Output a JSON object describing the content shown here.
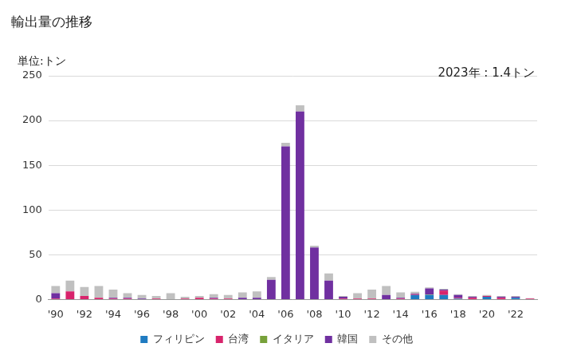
{
  "chart_data": {
    "type": "bar",
    "title": "輸出量の推移",
    "y_label": "単位:トン",
    "annotations": [
      "2023年 : 1.4トン"
    ],
    "categories": [
      "'90",
      null,
      "'92",
      null,
      "'94",
      null,
      "'96",
      null,
      "'98",
      null,
      "'00",
      null,
      "'02",
      null,
      "'04",
      null,
      "'06",
      null,
      "'08",
      null,
      "'10",
      null,
      "'12",
      null,
      "'14",
      null,
      "'16",
      null,
      "'18",
      null,
      "'20",
      null,
      "'22",
      null
    ],
    "series": [
      {
        "name": "フィリピン",
        "color": "#1f7bc1",
        "values": [
          0,
          0,
          0,
          0,
          0,
          0,
          0,
          0,
          0,
          0,
          0,
          0,
          0,
          0,
          0,
          0,
          0,
          0,
          0,
          0,
          0,
          0,
          0,
          0,
          0,
          5,
          5,
          5,
          1,
          0,
          3,
          0,
          2,
          0
        ]
      },
      {
        "name": "台湾",
        "color": "#d8246c",
        "values": [
          1,
          9,
          4,
          2,
          1,
          1,
          0,
          1,
          0,
          1,
          2,
          1,
          1,
          0,
          0,
          0,
          0,
          0,
          0,
          0,
          1,
          1,
          1,
          0,
          1,
          1,
          0,
          5,
          1,
          2,
          1,
          2,
          0,
          1
        ]
      },
      {
        "name": "イタリア",
        "color": "#77a13a",
        "values": [
          0,
          0,
          0,
          0,
          0,
          0,
          0,
          0,
          0,
          0,
          0,
          0,
          0,
          0,
          0,
          0,
          0,
          0,
          0,
          0,
          0,
          0,
          0,
          0,
          0,
          0,
          0.5,
          0,
          0,
          0,
          0,
          0,
          0,
          0
        ]
      },
      {
        "name": "韓国",
        "color": "#7030a0",
        "values": [
          6,
          0,
          0,
          0,
          1,
          1,
          1,
          0,
          0,
          0,
          0,
          1,
          0,
          2,
          2,
          22,
          171,
          210,
          58,
          21,
          2,
          0,
          0,
          5,
          1,
          0.5,
          7,
          1,
          3,
          1,
          0,
          1,
          1,
          0
        ]
      },
      {
        "name": "その他",
        "color": "#c0c0c0",
        "values": [
          8,
          12,
          10,
          13,
          9,
          5,
          4,
          3,
          7,
          2,
          2,
          4,
          4,
          6,
          7,
          3,
          4,
          7,
          2,
          8,
          1,
          6,
          10,
          10,
          6,
          2,
          1,
          1,
          1,
          1,
          1,
          1,
          1,
          0.4
        ]
      }
    ],
    "ylim": [
      0,
      250
    ],
    "yticks": [
      0,
      50,
      100,
      150,
      200,
      250
    ],
    "grid": true,
    "stacked": true,
    "legend": "bottom"
  }
}
